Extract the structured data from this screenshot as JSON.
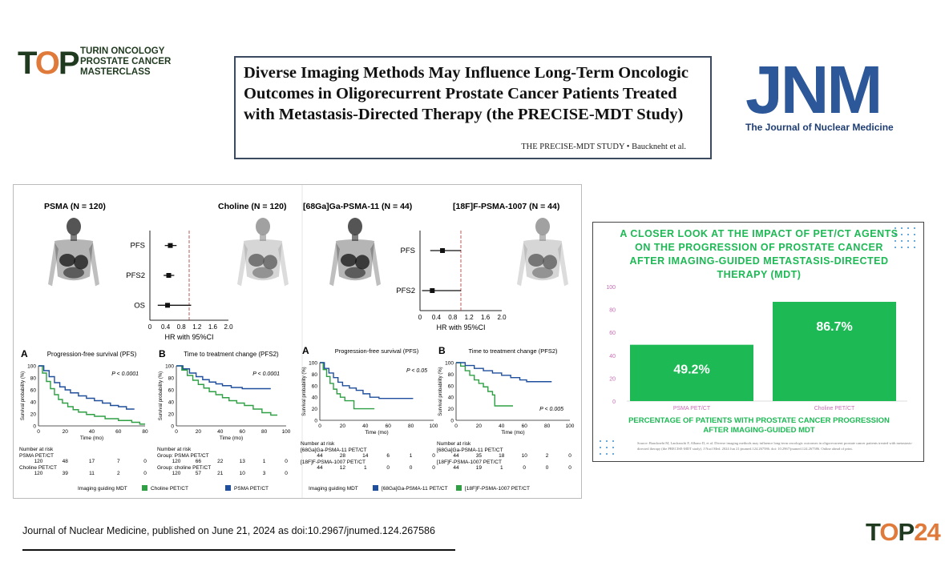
{
  "header": {
    "logo_mark": "T",
    "logo_mark_o": "O",
    "logo_mark_p": "P",
    "logo_text": "TURIN ONCOLOGY PROSTATE CANCER MASTERCLASS",
    "title": "Diverse Imaging Methods May Influence Long-Term Oncologic Outcomes in Oligorecurrent Prostate Cancer Patients Treated with Metastasis-Directed Therapy (the PRECISE-MDT Study)",
    "title_sub": "THE PRECISE-MDT STUDY  •  Bauckneht et al.",
    "journal_logo": "JNM",
    "journal_name": "The Journal of Nuclear Medicine"
  },
  "figure": {
    "left_group": {
      "psma_label": "PSMA (N = 120)",
      "choline_label": "Choline (N = 120)",
      "forest": {
        "rows": [
          "PFS",
          "PFS2",
          "OS"
        ],
        "hr": [
          0.52,
          0.48,
          0.45
        ],
        "lo": [
          0.38,
          0.35,
          0.2
        ],
        "hi": [
          0.68,
          0.62,
          1.05
        ],
        "xticks": [
          "0",
          "0.4",
          "0.8",
          "1.2",
          "1.6",
          "2.0"
        ],
        "xlabel": "HR with 95%CI"
      }
    },
    "right_group": {
      "ga_label": "[68Ga]Ga-PSMA-11 (N = 44)",
      "f_label": "[18F]F-PSMA-1007 (N = 44)",
      "forest": {
        "rows": [
          "PFS",
          "PFS2"
        ],
        "hr": [
          0.55,
          0.3
        ],
        "lo": [
          0.25,
          0.05
        ],
        "hi": [
          1.0,
          1.0
        ],
        "xticks": [
          "0",
          "0.4",
          "0.8",
          "1.2",
          "1.6",
          "2.0"
        ],
        "xlabel": "HR with 95%CI"
      }
    },
    "km": [
      {
        "letter": "A",
        "title": "Progression-free survival (PFS)",
        "pval": "P < 0.0001",
        "xticks": [
          "0",
          "20",
          "40",
          "60",
          "80"
        ],
        "xmax": 80,
        "risk_header": "Number at risk",
        "risk_rows": [
          {
            "label": "PSMA PET/CT",
            "values": [
              "120",
              "48",
              "17",
              "7",
              "0"
            ]
          },
          {
            "label": "Choline PET/CT",
            "values": [
              "120",
              "39",
              "11",
              "2",
              "0"
            ]
          }
        ],
        "blue": [
          [
            0,
            100
          ],
          [
            4,
            92
          ],
          [
            8,
            82
          ],
          [
            12,
            72
          ],
          [
            16,
            65
          ],
          [
            20,
            60
          ],
          [
            24,
            55
          ],
          [
            30,
            50
          ],
          [
            36,
            46
          ],
          [
            42,
            42
          ],
          [
            48,
            38
          ],
          [
            54,
            34
          ],
          [
            60,
            32
          ],
          [
            66,
            28
          ],
          [
            72,
            28
          ]
        ],
        "green": [
          [
            0,
            100
          ],
          [
            3,
            88
          ],
          [
            6,
            74
          ],
          [
            9,
            62
          ],
          [
            12,
            52
          ],
          [
            15,
            44
          ],
          [
            18,
            38
          ],
          [
            22,
            32
          ],
          [
            26,
            27
          ],
          [
            30,
            23
          ],
          [
            36,
            19
          ],
          [
            42,
            16
          ],
          [
            50,
            12
          ],
          [
            60,
            9
          ],
          [
            70,
            6
          ],
          [
            76,
            3
          ],
          [
            80,
            3
          ]
        ]
      },
      {
        "letter": "B",
        "title": "Time to treatment change (PFS2)",
        "pval": "P < 0.0001",
        "xticks": [
          "0",
          "20",
          "40",
          "60",
          "80",
          "100"
        ],
        "xmax": 100,
        "risk_header": "Number at risk",
        "risk_rows": [
          {
            "label": "Group: PSMA PET/CT",
            "values": [
              "120",
              "66",
              "22",
              "13",
              "1",
              "0"
            ]
          },
          {
            "label": "Group: choline PET/CT",
            "values": [
              "120",
              "57",
              "21",
              "10",
              "3",
              "0"
            ]
          }
        ],
        "blue": [
          [
            0,
            100
          ],
          [
            6,
            95
          ],
          [
            12,
            88
          ],
          [
            18,
            82
          ],
          [
            24,
            77
          ],
          [
            30,
            73
          ],
          [
            36,
            70
          ],
          [
            42,
            67
          ],
          [
            50,
            64
          ],
          [
            60,
            62
          ],
          [
            70,
            62
          ],
          [
            80,
            62
          ],
          [
            86,
            62
          ]
        ],
        "green": [
          [
            0,
            100
          ],
          [
            5,
            93
          ],
          [
            10,
            84
          ],
          [
            15,
            76
          ],
          [
            20,
            69
          ],
          [
            25,
            63
          ],
          [
            30,
            57
          ],
          [
            36,
            52
          ],
          [
            42,
            47
          ],
          [
            48,
            42
          ],
          [
            55,
            38
          ],
          [
            62,
            34
          ],
          [
            70,
            28
          ],
          [
            78,
            22
          ],
          [
            86,
            18
          ],
          [
            92,
            18
          ]
        ]
      },
      {
        "letter": "A",
        "title": "Progression-free survival (PFS)",
        "pval": "P < 0.05",
        "xticks": [
          "0",
          "20",
          "40",
          "60",
          "80",
          "100"
        ],
        "xmax": 100,
        "risk_header": "Number at risk",
        "risk_rows": [
          {
            "label": "[68Ga]Ga-PSMA-11 PET/CT",
            "values": [
              "44",
              "28",
              "14",
              "6",
              "1",
              "0"
            ]
          },
          {
            "label": "[18F]F-PSMA-1007 PET/CT",
            "values": [
              "44",
              "12",
              "1",
              "0",
              "0",
              "0"
            ]
          }
        ],
        "blue": [
          [
            0,
            100
          ],
          [
            4,
            90
          ],
          [
            8,
            82
          ],
          [
            12,
            74
          ],
          [
            16,
            66
          ],
          [
            20,
            60
          ],
          [
            26,
            56
          ],
          [
            32,
            52
          ],
          [
            38,
            46
          ],
          [
            44,
            40
          ],
          [
            52,
            38
          ],
          [
            62,
            38
          ],
          [
            72,
            38
          ],
          [
            82,
            38
          ]
        ],
        "green": [
          [
            0,
            100
          ],
          [
            3,
            88
          ],
          [
            6,
            76
          ],
          [
            9,
            64
          ],
          [
            12,
            54
          ],
          [
            15,
            46
          ],
          [
            18,
            40
          ],
          [
            22,
            34
          ],
          [
            26,
            34
          ],
          [
            30,
            20
          ],
          [
            34,
            20
          ],
          [
            40,
            20
          ],
          [
            48,
            20
          ]
        ]
      },
      {
        "letter": "B",
        "title": "Time to treatment change (PFS2)",
        "pval": "P < 0.005",
        "xticks": [
          "0",
          "20",
          "40",
          "60",
          "80",
          "100"
        ],
        "xmax": 100,
        "risk_header": "Number at risk",
        "risk_rows": [
          {
            "label": "[68Ga]Ga-PSMA-11 PET/CT",
            "values": [
              "44",
              "35",
              "18",
              "10",
              "2",
              "0"
            ]
          },
          {
            "label": "[18F]F-PSMA-1007 PET/CT",
            "values": [
              "44",
              "19",
              "1",
              "0",
              "0",
              "0"
            ]
          }
        ],
        "blue": [
          [
            0,
            100
          ],
          [
            8,
            95
          ],
          [
            16,
            90
          ],
          [
            24,
            86
          ],
          [
            32,
            82
          ],
          [
            40,
            78
          ],
          [
            48,
            74
          ],
          [
            56,
            70
          ],
          [
            62,
            67
          ],
          [
            72,
            67
          ],
          [
            84,
            67
          ]
        ],
        "green": [
          [
            0,
            100
          ],
          [
            4,
            94
          ],
          [
            8,
            86
          ],
          [
            12,
            78
          ],
          [
            16,
            70
          ],
          [
            20,
            64
          ],
          [
            24,
            58
          ],
          [
            28,
            50
          ],
          [
            32,
            44
          ],
          [
            34,
            25
          ],
          [
            38,
            25
          ],
          [
            44,
            25
          ],
          [
            50,
            25
          ]
        ]
      }
    ],
    "legend_left": {
      "title": "Imaging guiding MDT",
      "green": "Choline PET/CT",
      "blue": "PSMA PET/CT"
    },
    "legend_right": {
      "title": "Imaging guiding MDT",
      "blue": "[68Ga]Ga-PSMA-11 PET/CT",
      "green": "[18F]F-PSMA-1007 PET/CT"
    },
    "axis": {
      "ylabel": "Survival probability (%)",
      "xlabel": "Time (mo)",
      "yticks": [
        "0",
        "20",
        "40",
        "60",
        "80",
        "100"
      ]
    }
  },
  "infographic": {
    "heading": "A CLOSER LOOK AT THE IMPACT OF PET/CT AGENTS ON THE PROGRESSION OF PROSTATE CANCER AFTER IMAGING-GUIDED METASTASIS-DIRECTED THERAPY (MDT)",
    "footer": "PERCENTAGE OF PATIENTS WITH PROSTATE CANCER PROGRESSION AFTER IMAGING-GUIDED MDT",
    "source": "Source: Bauckneht M, Lanfranchi F, Albano D, et al. Diverse imaging methods may influence long-term oncologic outcomes in oligorecurrent prostate cancer patients treated with metastasis-directed therapy (the PRECISE-MDT study). J Nucl Med. 2024 Jun 21:jnumed.124.267586. doi: 10.2967/jnumed.124.267586. Online ahead of print.",
    "accent_color": "#1db954",
    "axis_color": "#c96bb5"
  },
  "chart_data": {
    "type": "bar",
    "categories": [
      "PSMA PET/CT",
      "Choline PET/CT"
    ],
    "values": [
      49.2,
      86.7
    ],
    "value_labels": [
      "49.2%",
      "86.7%"
    ],
    "yticks": [
      "0",
      "20",
      "40",
      "60",
      "80",
      "100"
    ],
    "ylim": [
      0,
      100
    ],
    "title": "",
    "xlabel": "",
    "ylabel": ""
  },
  "footer": {
    "citation": "Journal of Nuclear Medicine, published on June 21, 2024 as doi:10.2967/jnumed.124.267586",
    "badge_a": "T",
    "badge_o": "O",
    "badge_b": "P",
    "badge_n": "24"
  }
}
